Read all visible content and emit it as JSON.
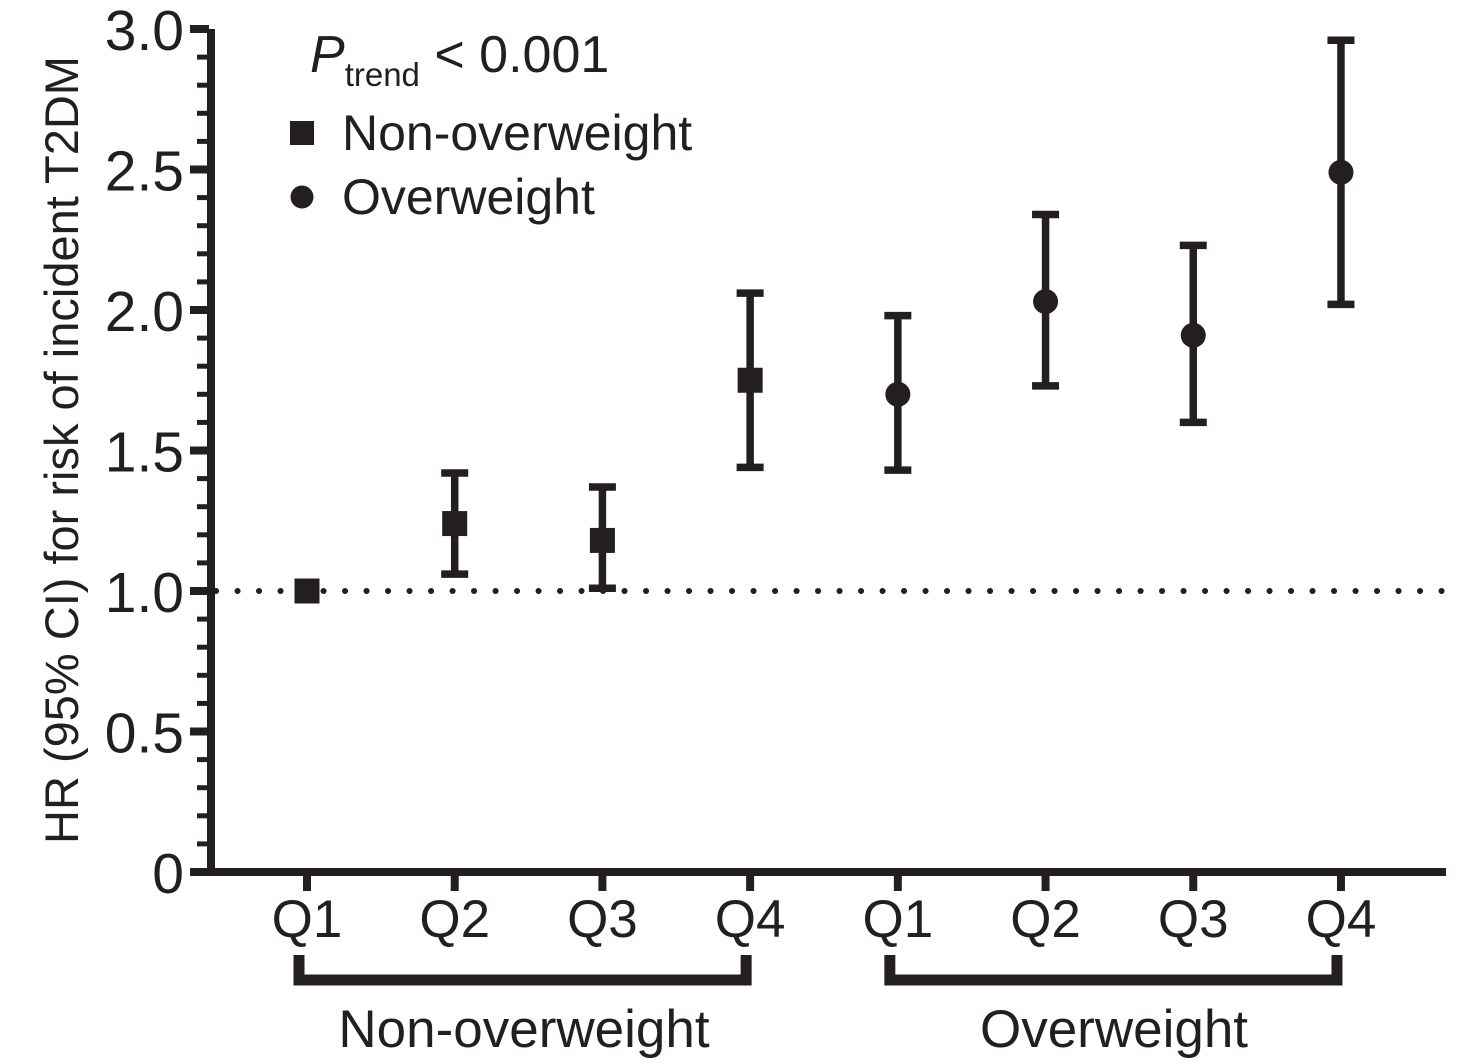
{
  "chart_data": {
    "type": "scatter",
    "title": "",
    "ylabel": "HR (95% CI) for risk of incident T2DM",
    "ylim": [
      0,
      3.0
    ],
    "ytick_major_step": 0.5,
    "ytick_minor_step": 0.1,
    "ytick_labels": [
      "0",
      "0.5",
      "1.0",
      "1.5",
      "2.0",
      "2.5",
      "3.0"
    ],
    "reference_line": 1.0,
    "grid": "off",
    "legend_position": "top-left-inside",
    "annotation": {
      "p_italic": "P",
      "p_sub": "trend",
      "p_rest": " < 0.001"
    },
    "legend": [
      {
        "marker": "square",
        "label": "Non-overweight"
      },
      {
        "marker": "circle",
        "label": "Overweight"
      }
    ],
    "groups": [
      {
        "label": "Non-overweight",
        "marker": "square",
        "points": [
          {
            "x_label": "Q1",
            "hr": 1.0,
            "ci_low": null,
            "ci_high": null,
            "reference": true
          },
          {
            "x_label": "Q2",
            "hr": 1.24,
            "ci_low": 1.06,
            "ci_high": 1.42
          },
          {
            "x_label": "Q3",
            "hr": 1.18,
            "ci_low": 1.01,
            "ci_high": 1.37
          },
          {
            "x_label": "Q4",
            "hr": 1.75,
            "ci_low": 1.44,
            "ci_high": 2.06
          }
        ]
      },
      {
        "label": "Overweight",
        "marker": "circle",
        "points": [
          {
            "x_label": "Q1",
            "hr": 1.7,
            "ci_low": 1.43,
            "ci_high": 1.98
          },
          {
            "x_label": "Q2",
            "hr": 2.03,
            "ci_low": 1.73,
            "ci_high": 2.34
          },
          {
            "x_label": "Q3",
            "hr": 1.91,
            "ci_low": 1.6,
            "ci_high": 2.23
          },
          {
            "x_label": "Q4",
            "hr": 2.49,
            "ci_low": 2.02,
            "ci_high": 2.96
          }
        ]
      }
    ],
    "colors": {
      "ink": "#231f20",
      "background": "#ffffff"
    }
  }
}
